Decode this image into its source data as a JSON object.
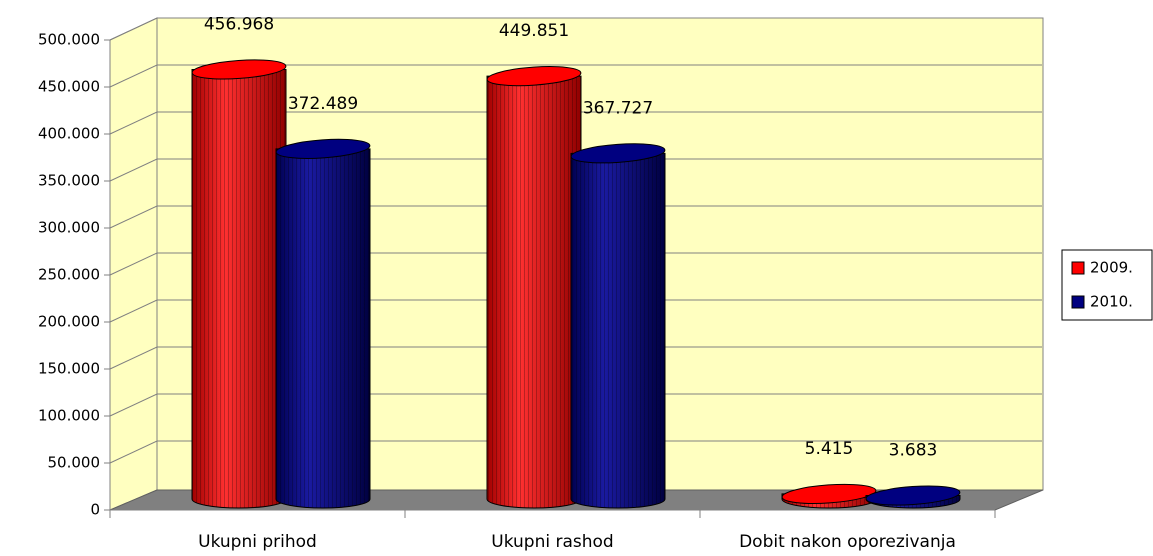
{
  "chart_data": {
    "type": "bar3d",
    "categories": [
      "Ukupni prihod",
      "Ukupni rashod",
      "Dobit nakon oporezivanja"
    ],
    "series": [
      {
        "name": "2009.",
        "color": "#ff0000",
        "values": [
          456968,
          449851,
          5415
        ],
        "value_labels": [
          "456.968",
          "449.851",
          "5.415"
        ]
      },
      {
        "name": "2010.",
        "color": "#000080",
        "values": [
          372489,
          367727,
          3683
        ],
        "value_labels": [
          "372.489",
          "367.727",
          "3.683"
        ]
      }
    ],
    "ylim": [
      0,
      500000
    ],
    "yticks": [
      0,
      {
        "value": 50000,
        "label": "50.000"
      },
      {
        "value": 100000,
        "label": "100.000"
      },
      {
        "value": 150000,
        "label": "150.000"
      },
      {
        "value": 200000,
        "label": "200.000"
      },
      {
        "value": 250000,
        "label": "250.000"
      },
      {
        "value": 300000,
        "label": "300.000"
      },
      {
        "value": 350000,
        "label": "350.000"
      },
      {
        "value": 400000,
        "label": "400.000"
      },
      {
        "value": 450000,
        "label": "450.000"
      },
      {
        "value": 500000,
        "label": "500.000"
      }
    ],
    "grid": true,
    "legend": "right"
  }
}
